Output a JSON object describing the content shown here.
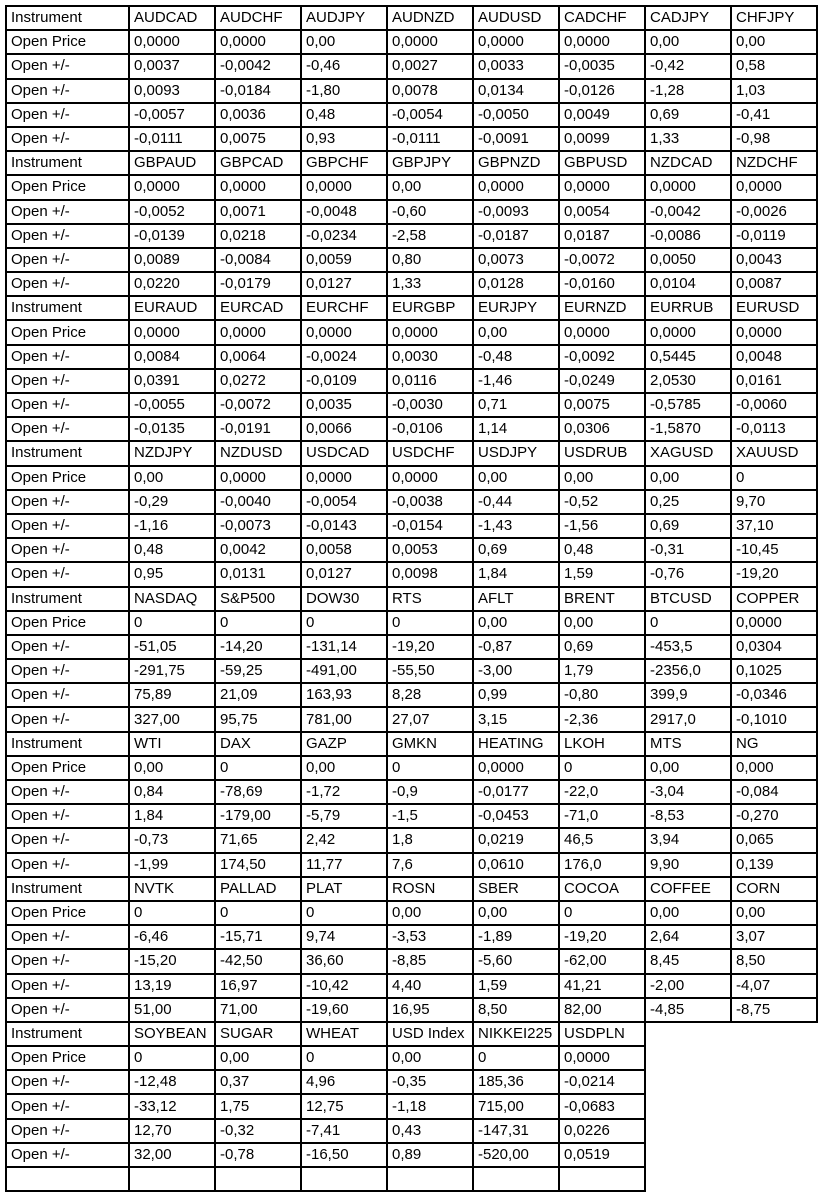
{
  "table": {
    "row_labels": {
      "instrument": "Instrument",
      "open_price": "Open Price",
      "open_change": "Open +/-"
    },
    "colors": {
      "green": "#00B050",
      "red": "#FF0000",
      "orange": "#FFC000",
      "label_blue": "#B8CCE4",
      "grid": "#000000"
    },
    "blocks": [
      {
        "instruments": [
          {
            "name": "AUDCAD",
            "color": "red"
          },
          {
            "name": "AUDCHF",
            "color": "green"
          },
          {
            "name": "AUDJPY",
            "color": "green"
          },
          {
            "name": "AUDNZD",
            "color": "red"
          },
          {
            "name": "AUDUSD",
            "color": "red"
          },
          {
            "name": "CADCHF",
            "color": "green"
          },
          {
            "name": "CADJPY",
            "color": "green"
          },
          {
            "name": "CHFJPY",
            "color": "red"
          }
        ],
        "open_prices": [
          "0,0000",
          "0,0000",
          "0,00",
          "0,0000",
          "0,0000",
          "0,0000",
          "0,00",
          "0,00"
        ],
        "changes": [
          [
            "0,0037",
            "-0,0042",
            "-0,46",
            "0,0027",
            "0,0033",
            "-0,0035",
            "-0,42",
            "0,58"
          ],
          [
            "0,0093",
            "-0,0184",
            "-1,80",
            "0,0078",
            "0,0134",
            "-0,0126",
            "-1,28",
            "1,03"
          ],
          [
            "-0,0057",
            "0,0036",
            "0,48",
            "-0,0054",
            "-0,0050",
            "0,0049",
            "0,69",
            "-0,41"
          ],
          [
            "-0,0111",
            "0,0075",
            "0,93",
            "-0,0111",
            "-0,0091",
            "0,0099",
            "1,33",
            "-0,98"
          ]
        ]
      },
      {
        "instruments": [
          {
            "name": "GBPAUD",
            "color": "green"
          },
          {
            "name": "GBPCAD",
            "color": "red"
          },
          {
            "name": "GBPCHF",
            "color": "green"
          },
          {
            "name": "GBPJPY",
            "color": "green"
          },
          {
            "name": "GBPNZD",
            "color": "green"
          },
          {
            "name": "GBPUSD",
            "color": "red"
          },
          {
            "name": "NZDCAD",
            "color": "green"
          },
          {
            "name": "NZDCHF",
            "color": "green"
          }
        ],
        "open_prices": [
          "0,0000",
          "0,0000",
          "0,0000",
          "0,00",
          "0,0000",
          "0,0000",
          "0,0000",
          "0,0000"
        ],
        "changes": [
          [
            "-0,0052",
            "0,0071",
            "-0,0048",
            "-0,60",
            "-0,0093",
            "0,0054",
            "-0,0042",
            "-0,0026"
          ],
          [
            "-0,0139",
            "0,0218",
            "-0,0234",
            "-2,58",
            "-0,0187",
            "0,0187",
            "-0,0086",
            "-0,0119"
          ],
          [
            "0,0089",
            "-0,0084",
            "0,0059",
            "0,80",
            "0,0073",
            "-0,0072",
            "0,0050",
            "0,0043"
          ],
          [
            "0,0220",
            "-0,0179",
            "0,0127",
            "1,33",
            "0,0128",
            "-0,0160",
            "0,0104",
            "0,0087"
          ]
        ]
      },
      {
        "instruments": [
          {
            "name": "EURAUD",
            "color": "red"
          },
          {
            "name": "EURCAD",
            "color": "red"
          },
          {
            "name": "EURCHF",
            "color": "green"
          },
          {
            "name": "EURGBP",
            "color": "red"
          },
          {
            "name": "EURJPY",
            "color": "green"
          },
          {
            "name": "EURNZD",
            "color": "green"
          },
          {
            "name": "EURRUB",
            "color": "red"
          },
          {
            "name": "EURUSD",
            "color": "red"
          }
        ],
        "open_prices": [
          "0,0000",
          "0,0000",
          "0,0000",
          "0,0000",
          "0,00",
          "0,0000",
          "0,0000",
          "0,0000"
        ],
        "changes": [
          [
            "0,0084",
            "0,0064",
            "-0,0024",
            "0,0030",
            "-0,48",
            "-0,0092",
            "0,5445",
            "0,0048"
          ],
          [
            "0,0391",
            "0,0272",
            "-0,0109",
            "0,0116",
            "-1,46",
            "-0,0249",
            "2,0530",
            "0,0161"
          ],
          [
            "-0,0055",
            "-0,0072",
            "0,0035",
            "-0,0030",
            "0,71",
            "0,0075",
            "-0,5785",
            "-0,0060"
          ],
          [
            "-0,0135",
            "-0,0191",
            "0,0066",
            "-0,0106",
            "1,14",
            "0,0306",
            "-1,5870",
            "-0,0113"
          ]
        ]
      },
      {
        "instruments": [
          {
            "name": "NZDJPY",
            "color": "green"
          },
          {
            "name": "NZDUSD",
            "color": "green"
          },
          {
            "name": "USDCAD",
            "color": "green"
          },
          {
            "name": "USDCHF",
            "color": "green"
          },
          {
            "name": "USDJPY",
            "color": "green"
          },
          {
            "name": "USDRUB",
            "color": "green"
          },
          {
            "name": "XAGUSD",
            "color": "red"
          },
          {
            "name": "XAUUSD",
            "color": "red"
          }
        ],
        "open_prices": [
          "0,00",
          "0,0000",
          "0,0000",
          "0,0000",
          "0,00",
          "0,00",
          "0,00",
          "0"
        ],
        "changes": [
          [
            "-0,29",
            "-0,0040",
            "-0,0054",
            "-0,0038",
            "-0,44",
            "-0,52",
            "0,25",
            "9,70"
          ],
          [
            "-1,16",
            "-0,0073",
            "-0,0143",
            "-0,0154",
            "-1,43",
            "-1,56",
            "0,69",
            "37,10"
          ],
          [
            "0,48",
            "0,0042",
            "0,0058",
            "0,0053",
            "0,69",
            "0,48",
            "-0,31",
            "-10,45"
          ],
          [
            "0,95",
            "0,0131",
            "0,0127",
            "0,0098",
            "1,84",
            "1,59",
            "-0,76",
            "-19,20"
          ]
        ]
      },
      {
        "instruments": [
          {
            "name": "NASDAQ",
            "color": "green"
          },
          {
            "name": "S&P500",
            "color": "green"
          },
          {
            "name": "DOW30",
            "color": "green"
          },
          {
            "name": "RTS",
            "color": "green"
          },
          {
            "name": "AFLT",
            "color": "white"
          },
          {
            "name": "BRENT",
            "color": "red"
          },
          {
            "name": "BTCUSD",
            "color": "white"
          },
          {
            "name": "COPPER",
            "color": "red"
          }
        ],
        "open_prices": [
          "0",
          "0",
          "0",
          "0",
          "0,00",
          "0,00",
          "0",
          "0,0000"
        ],
        "changes": [
          [
            "-51,05",
            "-14,20",
            "-131,14",
            "-19,20",
            "-0,87",
            "0,69",
            "-453,5",
            "0,0304"
          ],
          [
            "-291,75",
            "-59,25",
            "-491,00",
            "-55,50",
            "-3,00",
            "1,79",
            "-2356,0",
            "0,1025"
          ],
          [
            "75,89",
            "21,09",
            "163,93",
            "8,28",
            "0,99",
            "-0,80",
            "399,9",
            "-0,0346"
          ],
          [
            "327,00",
            "95,75",
            "781,00",
            "27,07",
            "3,15",
            "-2,36",
            "2917,0",
            "-0,1010"
          ]
        ]
      },
      {
        "instruments": [
          {
            "name": "WTI",
            "color": "red"
          },
          {
            "name": "DAX",
            "color": "green"
          },
          {
            "name": "GAZP",
            "color": "green"
          },
          {
            "name": "GMKN",
            "color": "white"
          },
          {
            "name": "HEATING",
            "color": "green"
          },
          {
            "name": "LKOH",
            "color": "green"
          },
          {
            "name": "MTS",
            "color": "green"
          },
          {
            "name": "NG",
            "color": "green"
          }
        ],
        "open_prices": [
          "0,00",
          "0",
          "0,00",
          "0",
          "0,0000",
          "0",
          "0,00",
          "0,000"
        ],
        "changes": [
          [
            "0,84",
            "-78,69",
            "-1,72",
            "-0,9",
            "-0,0177",
            "-22,0",
            "-3,04",
            "-0,084"
          ],
          [
            "1,84",
            "-179,00",
            "-5,79",
            "-1,5",
            "-0,0453",
            "-71,0",
            "-8,53",
            "-0,270"
          ],
          [
            "-0,73",
            "71,65",
            "2,42",
            "1,8",
            "0,0219",
            "46,5",
            "3,94",
            "0,065"
          ],
          [
            "-1,99",
            "174,50",
            "11,77",
            "7,6",
            "0,0610",
            "176,0",
            "9,90",
            "0,139"
          ]
        ]
      },
      {
        "instruments": [
          {
            "name": "NVTK",
            "color": "green"
          },
          {
            "name": "PALLAD",
            "color": "green"
          },
          {
            "name": "PLAT",
            "color": "red"
          },
          {
            "name": "ROSN",
            "color": "green"
          },
          {
            "name": "SBER",
            "color": "white"
          },
          {
            "name": "COCOA",
            "color": "green"
          },
          {
            "name": "COFFEE",
            "color": "red"
          },
          {
            "name": "CORN",
            "color": "red"
          }
        ],
        "open_prices": [
          "0",
          "0",
          "0",
          "0,00",
          "0,00",
          "0",
          "0,00",
          "0,00"
        ],
        "changes": [
          [
            "-6,46",
            "-15,71",
            "9,74",
            "-3,53",
            "-1,89",
            "-19,20",
            "2,64",
            "3,07"
          ],
          [
            "-15,20",
            "-42,50",
            "36,60",
            "-8,85",
            "-5,60",
            "-62,00",
            "8,45",
            "8,50"
          ],
          [
            "13,19",
            "16,97",
            "-10,42",
            "4,40",
            "1,59",
            "41,21",
            "-2,00",
            "-4,07"
          ],
          [
            "51,00",
            "71,00",
            "-19,60",
            "16,95",
            "8,50",
            "82,00",
            "-4,85",
            "-8,75"
          ]
        ]
      },
      {
        "instruments": [
          {
            "name": "SOYBEAN",
            "color": "green"
          },
          {
            "name": "SUGAR",
            "color": "red"
          },
          {
            "name": "WHEAT",
            "color": "red"
          },
          {
            "name": "USD Index",
            "color": "green",
            "small": true
          },
          {
            "name": "NIKKEI225",
            "color": "red",
            "small": true
          },
          {
            "name": "USDPLN",
            "color": "green"
          }
        ],
        "open_prices": [
          "0",
          "0,00",
          "0",
          "0,00",
          "0",
          "0,0000"
        ],
        "changes": [
          [
            "-12,48",
            "0,37",
            "4,96",
            "-0,35",
            "185,36",
            "-0,0214"
          ],
          [
            "-33,12",
            "1,75",
            "12,75",
            "-1,18",
            "715,00",
            "-0,0683"
          ],
          [
            "12,70",
            "-0,32",
            "-7,41",
            "0,43",
            "-147,31",
            "0,0226"
          ],
          [
            "32,00",
            "-0,78",
            "-16,50",
            "0,89",
            "-520,00",
            "0,0519"
          ]
        ]
      }
    ]
  }
}
